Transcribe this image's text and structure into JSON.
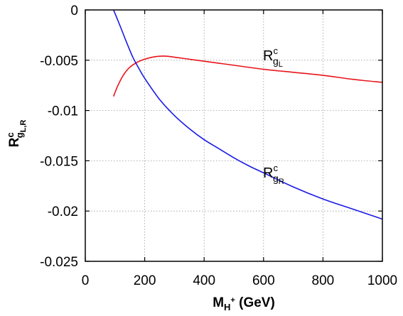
{
  "chart_data": {
    "type": "line",
    "xlabel": {
      "main": "M",
      "sub": "H",
      "sup": "+",
      "unit": " (GeV)"
    },
    "ylabel": {
      "main": "R",
      "sup": "c",
      "sub": "g",
      "subsub": "L,R"
    },
    "xlim": [
      0,
      1000
    ],
    "ylim": [
      -0.025,
      0
    ],
    "xticks": [
      0,
      200,
      400,
      600,
      800,
      1000
    ],
    "xtick_labels": [
      "0",
      "200",
      "400",
      "600",
      "800",
      "1000"
    ],
    "yticks": [
      0,
      -0.005,
      -0.01,
      -0.015,
      -0.02,
      -0.025
    ],
    "ytick_labels": [
      "0",
      "-0.005",
      "-0.01",
      "-0.015",
      "-0.02",
      "-0.025"
    ],
    "grid": true,
    "series": [
      {
        "label": {
          "main": "R",
          "sup": "c",
          "sub": "g",
          "subsub": "L"
        },
        "color": "#e8141b",
        "x": [
          95,
          110,
          130,
          150,
          175,
          200,
          225,
          250,
          275,
          300,
          350,
          400,
          450,
          500,
          600,
          700,
          800,
          900,
          1000
        ],
        "y": [
          -0.0086,
          -0.0075,
          -0.0064,
          -0.0057,
          -0.0052,
          -0.0049,
          -0.0047,
          -0.0046,
          -0.0046,
          -0.0047,
          -0.0049,
          -0.0051,
          -0.0053,
          -0.0055,
          -0.0059,
          -0.0062,
          -0.0065,
          -0.0069,
          -0.0072
        ]
      },
      {
        "label": {
          "main": "R",
          "sup": "c",
          "sub": "g",
          "subsub": "R"
        },
        "color": "#1a1ae6",
        "x": [
          95,
          105,
          120,
          140,
          160,
          180,
          200,
          250,
          300,
          350,
          400,
          450,
          500,
          550,
          600,
          700,
          800,
          900,
          1000
        ],
        "y": [
          0,
          -0.0007,
          -0.0018,
          -0.0033,
          -0.0047,
          -0.0058,
          -0.0068,
          -0.0089,
          -0.0105,
          -0.0118,
          -0.0129,
          -0.0138,
          -0.0147,
          -0.0155,
          -0.0162,
          -0.0176,
          -0.0188,
          -0.0198,
          -0.0208
        ]
      }
    ]
  }
}
